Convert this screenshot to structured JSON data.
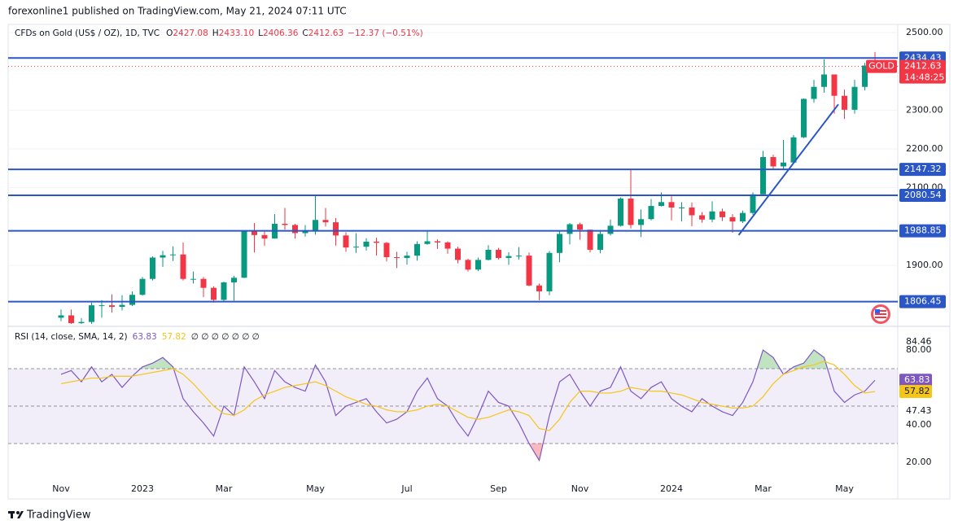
{
  "header": {
    "publisher": "forexonline1 published on TradingView.com, May 21, 2024 07:11 UTC",
    "brand": "TradingView"
  },
  "chart_data": [
    {
      "type": "candlestick",
      "symbol": "CFDs on Gold (US$ / OZ), 1D, TVC",
      "ohlc_legend": [
        {
          "key": "O",
          "value": "2427.08"
        },
        {
          "key": "H",
          "value": "2433.10"
        },
        {
          "key": "L",
          "value": "2406.36"
        },
        {
          "key": "C",
          "value": "2412.63"
        }
      ],
      "change": "−12.37 (−0.51%)",
      "categories": [
        "Nov",
        null,
        null,
        null,
        null,
        null,
        null,
        null,
        "2023",
        null,
        null,
        null,
        null,
        null,
        null,
        null,
        "Mar",
        null,
        null,
        null,
        null,
        null,
        null,
        null,
        null,
        "May",
        null,
        null,
        null,
        null,
        null,
        null,
        null,
        null,
        "Jul",
        null,
        null,
        null,
        null,
        null,
        null,
        null,
        null,
        "Sep",
        null,
        null,
        null,
        null,
        null,
        null,
        null,
        "Nov",
        null,
        null,
        null,
        null,
        null,
        null,
        null,
        null,
        "2024",
        null,
        null,
        null,
        null,
        null,
        null,
        null,
        null,
        "Mar",
        null,
        null,
        null,
        null,
        null,
        null,
        null,
        "May",
        null,
        null,
        null
      ],
      "open": [
        1765,
        1771,
        1751,
        1754,
        1797,
        1797,
        1793,
        1798,
        1824,
        1865,
        1920,
        1926,
        1928,
        1865,
        1865,
        1842,
        1811,
        1856,
        1868,
        1989,
        1978,
        1969,
        2007,
        2004,
        1983,
        1990,
        2017,
        2011,
        1977,
        1946,
        1948,
        1961,
        1958,
        1921,
        1919,
        1925,
        1955,
        1962,
        1959,
        1943,
        1914,
        1889,
        1914,
        1940,
        1919,
        1924,
        1925,
        1848,
        1833,
        1932,
        1981,
        2006,
        1992,
        1940,
        1981,
        2002,
        2072,
        2004,
        2019,
        2053,
        2063,
        2049,
        2049,
        2029,
        2018,
        2039,
        2024,
        2013,
        2035,
        2083,
        2179,
        2155,
        2165,
        2230,
        2329,
        2360,
        2392,
        2337,
        2301,
        2360,
        2415
      ],
      "high": [
        1786,
        1786,
        1764,
        1804,
        1810,
        1825,
        1823,
        1833,
        1870,
        1923,
        1937,
        1949,
        1959,
        1884,
        1870,
        1846,
        1858,
        1873,
        1990,
        2009,
        1987,
        2032,
        2048,
        2007,
        2004,
        2079,
        2048,
        2022,
        1985,
        1983,
        1970,
        1971,
        1960,
        1935,
        1935,
        1962,
        1987,
        1967,
        1962,
        1948,
        1917,
        1920,
        1952,
        1945,
        1934,
        1947,
        1933,
        1853,
        1937,
        1987,
        2009,
        2010,
        1992,
        1988,
        2018,
        2075,
        2147,
        2044,
        2071,
        2088,
        2078,
        2063,
        2062,
        2037,
        2065,
        2046,
        2032,
        2041,
        2088,
        2195,
        2185,
        2223,
        2236,
        2330,
        2378,
        2431,
        2392,
        2353,
        2378,
        2422,
        2450
      ],
      "low": [
        1756,
        1737,
        1721,
        1748,
        1765,
        1778,
        1784,
        1795,
        1822,
        1861,
        1896,
        1911,
        1861,
        1853,
        1818,
        1804,
        1808,
        1809,
        1867,
        1933,
        1950,
        1969,
        1992,
        1969,
        1974,
        1979,
        2000,
        1951,
        1935,
        1932,
        1938,
        1925,
        1910,
        1893,
        1902,
        1912,
        1953,
        1942,
        1930,
        1905,
        1884,
        1885,
        1913,
        1915,
        1901,
        1915,
        1846,
        1810,
        1823,
        1908,
        1954,
        1966,
        1933,
        1931,
        1977,
        2000,
        1995,
        1973,
        2016,
        2052,
        2016,
        2013,
        2001,
        2010,
        2011,
        2014,
        1984,
        2009,
        2030,
        2083,
        2146,
        2146,
        2163,
        2228,
        2319,
        2345,
        2291,
        2277,
        2291,
        2351,
        2406
      ],
      "close": [
        1771,
        1751,
        1754,
        1797,
        1797,
        1793,
        1798,
        1824,
        1865,
        1920,
        1926,
        1928,
        1865,
        1865,
        1842,
        1811,
        1856,
        1868,
        1989,
        1978,
        1969,
        2007,
        2004,
        1983,
        1990,
        2017,
        2011,
        1977,
        1946,
        1948,
        1961,
        1958,
        1921,
        1919,
        1925,
        1955,
        1962,
        1959,
        1943,
        1914,
        1889,
        1914,
        1940,
        1919,
        1924,
        1925,
        1848,
        1833,
        1932,
        1981,
        2006,
        1992,
        1940,
        1981,
        2002,
        2072,
        2004,
        2019,
        2053,
        2063,
        2049,
        2049,
        2029,
        2018,
        2039,
        2024,
        2013,
        2035,
        2083,
        2179,
        2155,
        2165,
        2230,
        2329,
        2360,
        2392,
        2337,
        2301,
        2360,
        2415,
        2412.63
      ],
      "up_color": "#089981",
      "down_color": "#f23645",
      "ylim": [
        1749,
        2521
      ],
      "yticks": [
        {
          "value": 2500,
          "label": "2500.00"
        },
        {
          "value": 2300,
          "label": "2300.00"
        },
        {
          "value": 2200,
          "label": "2200.00"
        },
        {
          "value": 2100,
          "label": "2100.00"
        },
        {
          "value": 1900,
          "label": "1900.00"
        }
      ],
      "grid": true,
      "levels": [
        2434.43,
        2147.32,
        2080.54,
        1988.85,
        1806.45
      ],
      "level_color": "#2a56c6",
      "trendline": {
        "start": {
          "index": 66.6,
          "price": 1978
        },
        "end": {
          "index": 76.4,
          "price": 2315
        }
      },
      "last_price": {
        "name": "GOLD",
        "countdown": "14:48:25",
        "color": "#f23645"
      }
    },
    {
      "type": "line",
      "title": "RSI (14, close, SMA, 14, 2)",
      "na_marks": "∅ ∅ ∅ ∅ ∅ ∅ ∅",
      "series": [
        {
          "color": "#7e57c2",
          "values": [
            67,
            69,
            63,
            71,
            63,
            67,
            60,
            66,
            71,
            73,
            76,
            71,
            54,
            47,
            41,
            34,
            50,
            45,
            71,
            63,
            54,
            69,
            63,
            60,
            58,
            72,
            63,
            45,
            50,
            52,
            54,
            47,
            41,
            43,
            47,
            58,
            65,
            54,
            50,
            41,
            34,
            45,
            58,
            52,
            50,
            41,
            30,
            21,
            45,
            63,
            67,
            58,
            50,
            58,
            60,
            71,
            58,
            54,
            60,
            63,
            54,
            50,
            47,
            54,
            50,
            47,
            45,
            52,
            63,
            80,
            76,
            67,
            71,
            73,
            80,
            76,
            58,
            52,
            56,
            58,
            63.83
          ]
        },
        {
          "color": "#f5c518",
          "values": [
            62,
            63,
            64,
            65,
            65,
            66,
            66,
            66,
            67,
            68,
            69,
            70,
            67,
            62,
            56,
            50,
            46,
            45,
            48,
            53,
            56,
            58,
            60,
            61,
            62,
            63,
            61,
            58,
            55,
            53,
            51,
            50,
            48,
            47,
            47,
            48,
            50,
            51,
            50,
            47,
            44,
            43,
            44,
            46,
            48,
            47,
            45,
            38,
            37,
            43,
            52,
            58,
            58,
            57,
            57,
            58,
            60,
            59,
            58,
            58,
            57,
            56,
            54,
            52,
            51,
            50,
            49,
            49,
            50,
            55,
            62,
            67,
            69,
            71,
            72,
            74,
            72,
            67,
            61,
            57,
            57.82
          ]
        }
      ],
      "ylim": [
        11.3,
        90.9
      ],
      "yticks": [
        84.46,
        {
          "value": 80,
          "label": "80.00"
        },
        47.43,
        {
          "value": 40,
          "label": "40.00"
        },
        {
          "value": 20,
          "label": "20.00"
        }
      ],
      "bands": [
        30,
        70
      ],
      "midline": 50,
      "overbought_color": "#4caf50",
      "oversold_color": "#f23645"
    }
  ]
}
